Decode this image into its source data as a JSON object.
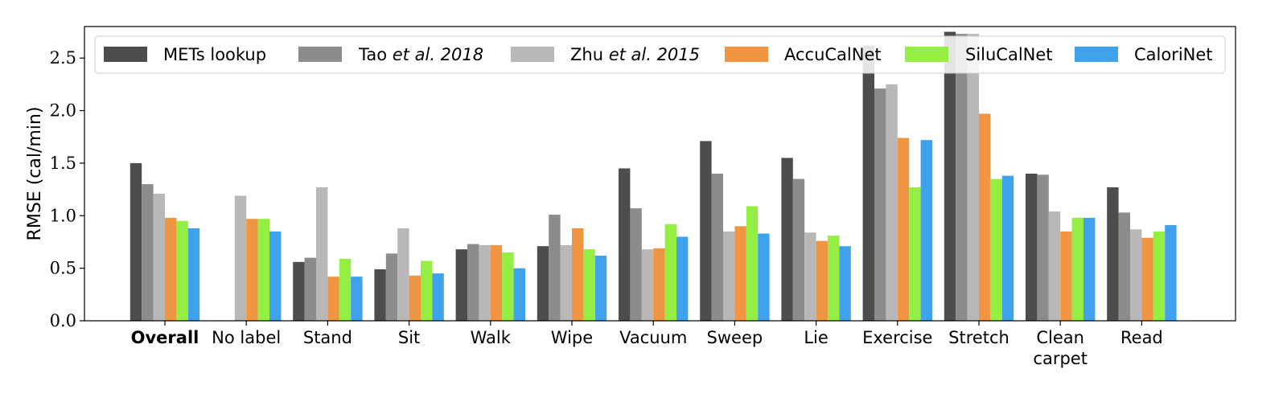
{
  "chart_data": {
    "type": "bar",
    "title": "",
    "xlabel": "",
    "ylabel": "RMSE (cal/min)",
    "ylim": [
      0,
      2.8
    ],
    "yticks": [
      "0.0",
      "0.5",
      "1.0",
      "1.5",
      "2.0",
      "2.5"
    ],
    "categories": [
      {
        "label": "Overall",
        "bold": true
      },
      {
        "label": "No label"
      },
      {
        "label": "Stand"
      },
      {
        "label": "Sit"
      },
      {
        "label": "Walk"
      },
      {
        "label": "Wipe"
      },
      {
        "label": "Vacuum"
      },
      {
        "label": "Sweep"
      },
      {
        "label": "Lie"
      },
      {
        "label": "Exercise"
      },
      {
        "label": "Stretch"
      },
      {
        "label": "Clean",
        "label2": "carpet"
      },
      {
        "label": "Read"
      }
    ],
    "legend": {
      "position": "top",
      "columns": 6
    },
    "series": [
      {
        "name": "METs lookup",
        "name_parts": [
          {
            "t": "METs lookup"
          }
        ],
        "color": "#4d4d4d",
        "values": [
          1.5,
          null,
          0.56,
          0.49,
          0.68,
          0.71,
          1.45,
          1.71,
          1.55,
          2.62,
          2.75,
          1.4,
          1.27
        ]
      },
      {
        "name": "Tao et al. 2018",
        "name_parts": [
          {
            "t": "Tao "
          },
          {
            "t": "et al. 2018",
            "italic": true
          }
        ],
        "color": "#8c8c8c",
        "values": [
          1.3,
          null,
          0.6,
          0.64,
          0.73,
          1.01,
          1.07,
          1.4,
          1.35,
          2.21,
          2.73,
          1.39,
          1.03
        ]
      },
      {
        "name": "Zhu et al. 2015",
        "name_parts": [
          {
            "t": "Zhu "
          },
          {
            "t": "et al. 2015",
            "italic": true
          }
        ],
        "color": "#b8b8b8",
        "values": [
          1.21,
          1.19,
          1.27,
          0.88,
          0.72,
          0.72,
          0.68,
          0.85,
          0.84,
          2.25,
          2.73,
          1.04,
          0.87
        ]
      },
      {
        "name": "AccuCalNet",
        "name_parts": [
          {
            "t": "AccuCalNet"
          }
        ],
        "color": "#f09642",
        "values": [
          0.98,
          0.97,
          0.42,
          0.43,
          0.72,
          0.88,
          0.69,
          0.9,
          0.76,
          1.74,
          1.97,
          0.85,
          0.79
        ]
      },
      {
        "name": "SiluCalNet",
        "name_parts": [
          {
            "t": "SiluCalNet"
          }
        ],
        "color": "#95ee43",
        "values": [
          0.95,
          0.97,
          0.59,
          0.57,
          0.65,
          0.68,
          0.92,
          1.09,
          0.81,
          1.27,
          1.35,
          0.98,
          0.85
        ]
      },
      {
        "name": "CaloriNet",
        "name_parts": [
          {
            "t": "CaloriNet"
          }
        ],
        "color": "#41a2ec",
        "values": [
          0.88,
          0.85,
          0.42,
          0.45,
          0.5,
          0.62,
          0.8,
          0.83,
          0.71,
          1.72,
          1.38,
          0.98,
          0.91
        ]
      }
    ]
  }
}
